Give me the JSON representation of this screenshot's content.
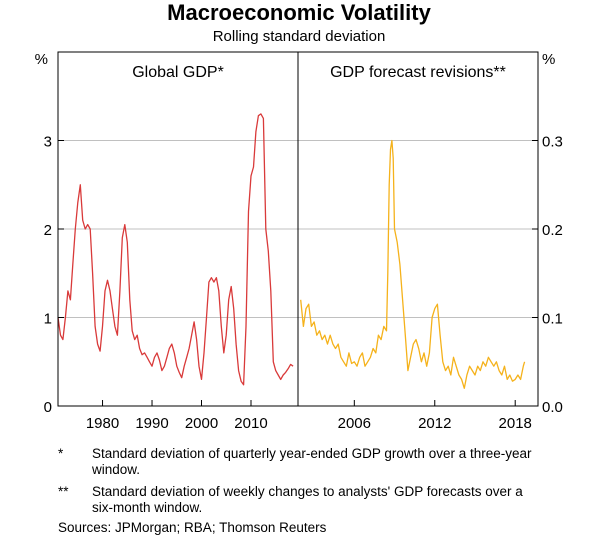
{
  "title": "Macroeconomic Volatility",
  "subtitle": "Rolling standard deviation",
  "notes": [
    {
      "marker": "*",
      "text": "Standard deviation of quarterly year-ended GDP growth over a three-year window."
    },
    {
      "marker": "**",
      "text": "Standard deviation of weekly changes to analysts' GDP forecasts over a six-month window."
    }
  ],
  "sources": "Sources:  JPMorgan; RBA; Thomson Reuters",
  "colors": {
    "global_gdp": "#d93a3a",
    "forecast_revisions": "#f5b21b",
    "grid": "#c0c0c0"
  },
  "chart_data": [
    {
      "type": "line",
      "panel_title": "Global GDP*",
      "yunit": "%",
      "ylim": [
        0,
        4
      ],
      "yticks": [
        0,
        1,
        2,
        3
      ],
      "ytick_labels": [
        "0",
        "1",
        "2",
        "3"
      ],
      "xlim": [
        1971,
        2019.5
      ],
      "xticks": [
        1980,
        1990,
        2000,
        2010
      ],
      "xtick_labels": [
        "1980",
        "1990",
        "2000",
        "2010"
      ],
      "grid": true,
      "series": [
        {
          "points": [
            [
              1971.0,
              1.0
            ],
            [
              1971.5,
              0.8
            ],
            [
              1972.0,
              0.75
            ],
            [
              1972.5,
              1.0
            ],
            [
              1973.0,
              1.3
            ],
            [
              1973.5,
              1.2
            ],
            [
              1974.0,
              1.6
            ],
            [
              1974.5,
              2.0
            ],
            [
              1975.0,
              2.3
            ],
            [
              1975.5,
              2.5
            ],
            [
              1976.0,
              2.1
            ],
            [
              1976.5,
              2.0
            ],
            [
              1977.0,
              2.05
            ],
            [
              1977.5,
              2.0
            ],
            [
              1978.0,
              1.5
            ],
            [
              1978.5,
              0.9
            ],
            [
              1979.0,
              0.7
            ],
            [
              1979.5,
              0.62
            ],
            [
              1980.0,
              0.9
            ],
            [
              1980.5,
              1.3
            ],
            [
              1981.0,
              1.42
            ],
            [
              1981.5,
              1.3
            ],
            [
              1982.0,
              1.1
            ],
            [
              1982.5,
              0.9
            ],
            [
              1983.0,
              0.8
            ],
            [
              1983.5,
              1.3
            ],
            [
              1984.0,
              1.9
            ],
            [
              1984.5,
              2.05
            ],
            [
              1985.0,
              1.85
            ],
            [
              1985.5,
              1.2
            ],
            [
              1986.0,
              0.85
            ],
            [
              1986.5,
              0.75
            ],
            [
              1987.0,
              0.8
            ],
            [
              1987.5,
              0.65
            ],
            [
              1988.0,
              0.58
            ],
            [
              1988.5,
              0.6
            ],
            [
              1989.0,
              0.55
            ],
            [
              1989.5,
              0.5
            ],
            [
              1990.0,
              0.45
            ],
            [
              1990.5,
              0.55
            ],
            [
              1991.0,
              0.6
            ],
            [
              1991.5,
              0.52
            ],
            [
              1992.0,
              0.4
            ],
            [
              1992.5,
              0.45
            ],
            [
              1993.0,
              0.55
            ],
            [
              1993.5,
              0.65
            ],
            [
              1994.0,
              0.7
            ],
            [
              1994.5,
              0.6
            ],
            [
              1995.0,
              0.45
            ],
            [
              1995.5,
              0.38
            ],
            [
              1996.0,
              0.32
            ],
            [
              1996.5,
              0.45
            ],
            [
              1997.0,
              0.55
            ],
            [
              1997.5,
              0.65
            ],
            [
              1998.0,
              0.8
            ],
            [
              1998.5,
              0.95
            ],
            [
              1999.0,
              0.75
            ],
            [
              1999.5,
              0.45
            ],
            [
              2000.0,
              0.3
            ],
            [
              2000.5,
              0.6
            ],
            [
              2001.0,
              1.0
            ],
            [
              2001.5,
              1.4
            ],
            [
              2002.0,
              1.45
            ],
            [
              2002.5,
              1.4
            ],
            [
              2003.0,
              1.45
            ],
            [
              2003.5,
              1.3
            ],
            [
              2004.0,
              0.9
            ],
            [
              2004.5,
              0.6
            ],
            [
              2005.0,
              0.8
            ],
            [
              2005.5,
              1.2
            ],
            [
              2006.0,
              1.35
            ],
            [
              2006.5,
              1.1
            ],
            [
              2007.0,
              0.7
            ],
            [
              2007.5,
              0.4
            ],
            [
              2008.0,
              0.28
            ],
            [
              2008.5,
              0.24
            ],
            [
              2009.0,
              0.9
            ],
            [
              2009.5,
              2.2
            ],
            [
              2010.0,
              2.6
            ],
            [
              2010.5,
              2.7
            ],
            [
              2011.0,
              3.1
            ],
            [
              2011.5,
              3.28
            ],
            [
              2012.0,
              3.3
            ],
            [
              2012.5,
              3.25
            ],
            [
              2013.0,
              2.0
            ],
            [
              2013.5,
              1.75
            ],
            [
              2014.0,
              1.3
            ],
            [
              2014.5,
              0.5
            ],
            [
              2015.0,
              0.4
            ],
            [
              2015.5,
              0.35
            ],
            [
              2016.0,
              0.3
            ],
            [
              2016.5,
              0.35
            ],
            [
              2017.0,
              0.38
            ],
            [
              2017.5,
              0.42
            ],
            [
              2018.0,
              0.47
            ],
            [
              2018.5,
              0.45
            ]
          ]
        }
      ]
    },
    {
      "type": "line",
      "panel_title": "GDP forecast revisions**",
      "yunit": "%",
      "ylim": [
        0,
        0.4
      ],
      "yticks": [
        0.0,
        0.1,
        0.2,
        0.3
      ],
      "ytick_labels": [
        "0.0",
        "0.1",
        "0.2",
        "0.3"
      ],
      "xlim": [
        2001.8,
        2019.7
      ],
      "xticks": [
        2006,
        2012,
        2018
      ],
      "xtick_labels": [
        "2006",
        "2012",
        "2018"
      ],
      "grid": true,
      "series": [
        {
          "points": [
            [
              2002.0,
              0.12
            ],
            [
              2002.2,
              0.09
            ],
            [
              2002.4,
              0.11
            ],
            [
              2002.6,
              0.115
            ],
            [
              2002.8,
              0.09
            ],
            [
              2003.0,
              0.095
            ],
            [
              2003.2,
              0.08
            ],
            [
              2003.4,
              0.085
            ],
            [
              2003.6,
              0.075
            ],
            [
              2003.8,
              0.08
            ],
            [
              2004.0,
              0.07
            ],
            [
              2004.2,
              0.08
            ],
            [
              2004.4,
              0.07
            ],
            [
              2004.6,
              0.065
            ],
            [
              2004.8,
              0.07
            ],
            [
              2005.0,
              0.055
            ],
            [
              2005.2,
              0.05
            ],
            [
              2005.4,
              0.045
            ],
            [
              2005.6,
              0.06
            ],
            [
              2005.8,
              0.048
            ],
            [
              2006.0,
              0.05
            ],
            [
              2006.2,
              0.045
            ],
            [
              2006.4,
              0.055
            ],
            [
              2006.6,
              0.06
            ],
            [
              2006.8,
              0.045
            ],
            [
              2007.0,
              0.05
            ],
            [
              2007.2,
              0.055
            ],
            [
              2007.4,
              0.065
            ],
            [
              2007.6,
              0.06
            ],
            [
              2007.8,
              0.08
            ],
            [
              2008.0,
              0.075
            ],
            [
              2008.2,
              0.09
            ],
            [
              2008.4,
              0.085
            ],
            [
              2008.5,
              0.15
            ],
            [
              2008.6,
              0.25
            ],
            [
              2008.7,
              0.29
            ],
            [
              2008.8,
              0.3
            ],
            [
              2008.9,
              0.28
            ],
            [
              2009.0,
              0.2
            ],
            [
              2009.2,
              0.185
            ],
            [
              2009.4,
              0.16
            ],
            [
              2009.6,
              0.12
            ],
            [
              2009.8,
              0.08
            ],
            [
              2010.0,
              0.04
            ],
            [
              2010.2,
              0.055
            ],
            [
              2010.4,
              0.07
            ],
            [
              2010.6,
              0.075
            ],
            [
              2010.8,
              0.065
            ],
            [
              2011.0,
              0.05
            ],
            [
              2011.2,
              0.06
            ],
            [
              2011.4,
              0.045
            ],
            [
              2011.6,
              0.06
            ],
            [
              2011.8,
              0.1
            ],
            [
              2012.0,
              0.11
            ],
            [
              2012.2,
              0.115
            ],
            [
              2012.4,
              0.08
            ],
            [
              2012.6,
              0.05
            ],
            [
              2012.8,
              0.04
            ],
            [
              2013.0,
              0.045
            ],
            [
              2013.2,
              0.035
            ],
            [
              2013.4,
              0.055
            ],
            [
              2013.6,
              0.045
            ],
            [
              2013.8,
              0.035
            ],
            [
              2014.0,
              0.03
            ],
            [
              2014.2,
              0.02
            ],
            [
              2014.4,
              0.035
            ],
            [
              2014.6,
              0.045
            ],
            [
              2014.8,
              0.04
            ],
            [
              2015.0,
              0.035
            ],
            [
              2015.2,
              0.045
            ],
            [
              2015.4,
              0.04
            ],
            [
              2015.6,
              0.05
            ],
            [
              2015.8,
              0.045
            ],
            [
              2016.0,
              0.055
            ],
            [
              2016.2,
              0.05
            ],
            [
              2016.4,
              0.045
            ],
            [
              2016.6,
              0.05
            ],
            [
              2016.8,
              0.04
            ],
            [
              2017.0,
              0.035
            ],
            [
              2017.2,
              0.045
            ],
            [
              2017.4,
              0.03
            ],
            [
              2017.6,
              0.035
            ],
            [
              2017.8,
              0.028
            ],
            [
              2018.0,
              0.03
            ],
            [
              2018.2,
              0.035
            ],
            [
              2018.4,
              0.03
            ],
            [
              2018.6,
              0.045
            ],
            [
              2018.7,
              0.05
            ]
          ]
        }
      ]
    }
  ]
}
